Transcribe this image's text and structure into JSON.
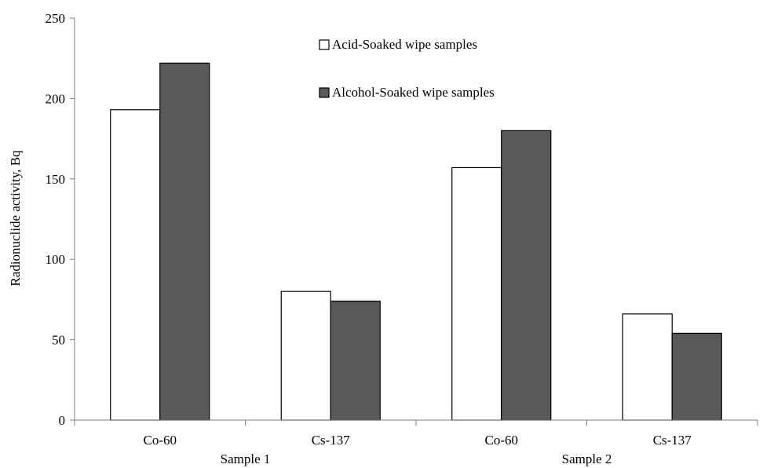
{
  "chart_data": {
    "type": "bar",
    "title": "",
    "xlabel": "",
    "ylabel": "Radionuclide activity, Bq",
    "ylim": [
      0,
      250
    ],
    "yticks": [
      0,
      50,
      100,
      150,
      200,
      250
    ],
    "grid": false,
    "legend_position": "top-center",
    "categories": [
      "Co-60",
      "Cs-137",
      "Co-60",
      "Cs-137"
    ],
    "groups": [
      {
        "label": "Sample 1",
        "categories": [
          0,
          1
        ]
      },
      {
        "label": "Sample 2",
        "categories": [
          2,
          3
        ]
      }
    ],
    "series": [
      {
        "name": "Acid-Soaked wipe samples",
        "color": "#ffffff",
        "values": [
          193,
          80,
          157,
          66
        ]
      },
      {
        "name": "Alcohol-Soaked wipe samples",
        "color": "#595959",
        "values": [
          222,
          74,
          180,
          54
        ]
      }
    ]
  }
}
